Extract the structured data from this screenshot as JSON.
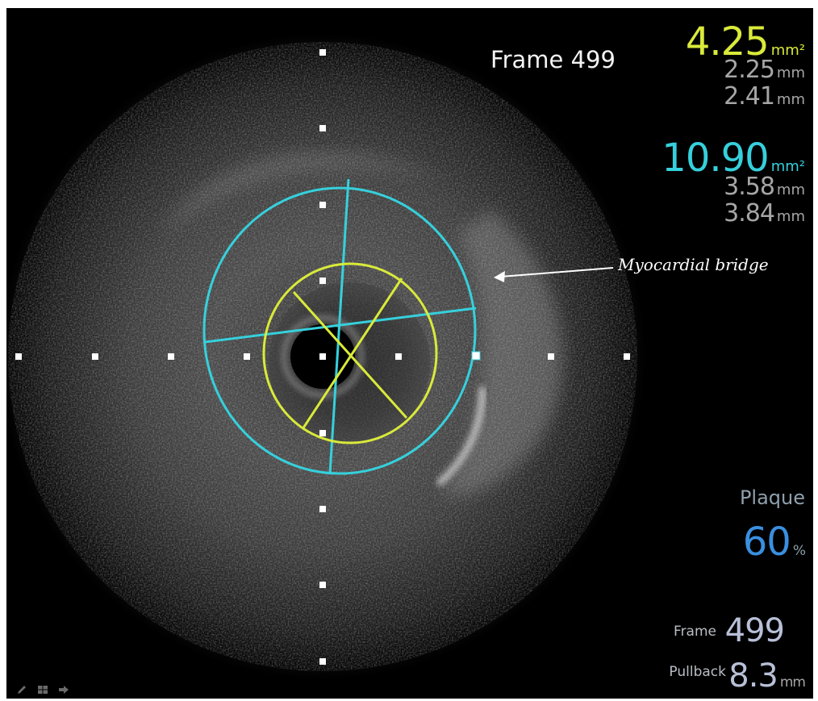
{
  "frame_title": "Frame 499",
  "lumen": {
    "area": "4.25",
    "area_unit": "mm²",
    "min_diameter": "2.25",
    "max_diameter": "2.41",
    "diameter_unit": "mm",
    "color": "#d9ea3a"
  },
  "vessel": {
    "area": "10.90",
    "area_unit": "mm²",
    "min_diameter": "3.58",
    "max_diameter": "3.84",
    "diameter_unit": "mm",
    "color": "#36d0dc"
  },
  "plaque": {
    "label": "Plaque",
    "value": "60",
    "unit": "%"
  },
  "frame_info": {
    "label": "Frame",
    "value": "499"
  },
  "pullback": {
    "label": "Pullback",
    "value": "8.3",
    "unit": "mm"
  },
  "annotation": {
    "text": "Myocardial bridge"
  },
  "toolbar": {
    "icons": [
      "pencil-icon",
      "grid-icon",
      "arrow-right-icon"
    ]
  }
}
